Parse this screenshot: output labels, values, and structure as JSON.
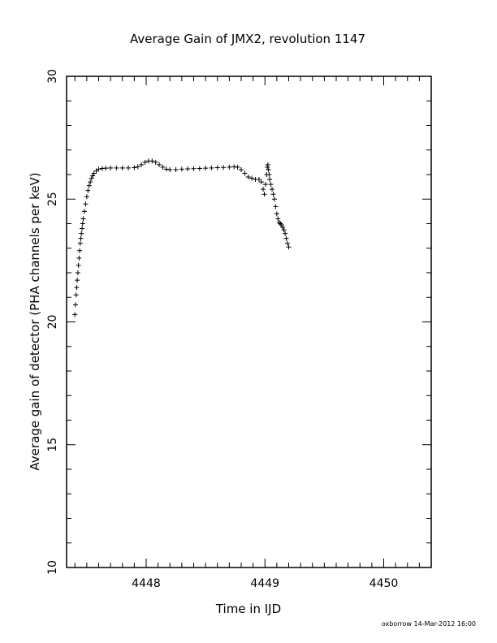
{
  "chart_data": {
    "type": "scatter",
    "title": "Average Gain of JMX2, revolution 1147",
    "xlabel": "Time in IJD",
    "ylabel": "Average gain of detector (PHA channels per keV)",
    "xlim": [
      4447.33,
      4450.4
    ],
    "ylim": [
      10,
      30
    ],
    "x_ticks": [
      4448,
      4449,
      4450
    ],
    "y_ticks": [
      10,
      15,
      20,
      25,
      30
    ],
    "x_minor_step": 0.1,
    "y_minor_step": 1,
    "grid": false,
    "legend": "none",
    "marker": "plus",
    "series": [
      {
        "points": [
          [
            4447.4,
            20.3
          ],
          [
            4447.405,
            20.7
          ],
          [
            4447.41,
            21.1
          ],
          [
            4447.415,
            21.4
          ],
          [
            4447.42,
            21.7
          ],
          [
            4447.425,
            22.0
          ],
          [
            4447.43,
            22.3
          ],
          [
            4447.435,
            22.6
          ],
          [
            4447.44,
            22.9
          ],
          [
            4447.445,
            23.2
          ],
          [
            4447.45,
            23.4
          ],
          [
            4447.455,
            23.6
          ],
          [
            4447.46,
            23.8
          ],
          [
            4447.465,
            24.0
          ],
          [
            4447.47,
            24.2
          ],
          [
            4447.48,
            24.5
          ],
          [
            4447.49,
            24.8
          ],
          [
            4447.5,
            25.1
          ],
          [
            4447.51,
            25.35
          ],
          [
            4447.52,
            25.55
          ],
          [
            4447.53,
            25.7
          ],
          [
            4447.54,
            25.85
          ],
          [
            4447.55,
            25.95
          ],
          [
            4447.56,
            26.05
          ],
          [
            4447.58,
            26.15
          ],
          [
            4447.6,
            26.22
          ],
          [
            4447.63,
            26.25
          ],
          [
            4447.66,
            26.26
          ],
          [
            4447.7,
            26.27
          ],
          [
            4447.75,
            26.27
          ],
          [
            4447.8,
            26.27
          ],
          [
            4447.85,
            26.27
          ],
          [
            4447.9,
            26.28
          ],
          [
            4447.93,
            26.32
          ],
          [
            4447.96,
            26.4
          ],
          [
            4447.99,
            26.5
          ],
          [
            4448.02,
            26.55
          ],
          [
            4448.05,
            26.55
          ],
          [
            4448.08,
            26.5
          ],
          [
            4448.11,
            26.4
          ],
          [
            4448.14,
            26.3
          ],
          [
            4448.17,
            26.22
          ],
          [
            4448.2,
            26.2
          ],
          [
            4448.25,
            26.2
          ],
          [
            4448.3,
            26.22
          ],
          [
            4448.35,
            26.23
          ],
          [
            4448.4,
            26.24
          ],
          [
            4448.45,
            26.25
          ],
          [
            4448.5,
            26.26
          ],
          [
            4448.55,
            26.27
          ],
          [
            4448.6,
            26.28
          ],
          [
            4448.65,
            26.29
          ],
          [
            4448.7,
            26.3
          ],
          [
            4448.74,
            26.32
          ],
          [
            4448.77,
            26.3
          ],
          [
            4448.8,
            26.2
          ],
          [
            4448.83,
            26.05
          ],
          [
            4448.86,
            25.9
          ],
          [
            4448.89,
            25.85
          ],
          [
            4448.92,
            25.8
          ],
          [
            4448.95,
            25.8
          ],
          [
            4448.97,
            25.7
          ],
          [
            4448.985,
            25.4
          ],
          [
            4448.995,
            25.2
          ],
          [
            4449.005,
            25.6
          ],
          [
            4449.015,
            26.0
          ],
          [
            4449.02,
            26.3
          ],
          [
            4449.025,
            26.4
          ],
          [
            4449.03,
            26.2
          ],
          [
            4449.035,
            26.0
          ],
          [
            4449.04,
            25.8
          ],
          [
            4449.05,
            25.6
          ],
          [
            4449.06,
            25.4
          ],
          [
            4449.07,
            25.2
          ],
          [
            4449.08,
            25.0
          ],
          [
            4449.09,
            24.7
          ],
          [
            4449.1,
            24.4
          ],
          [
            4449.11,
            24.2
          ],
          [
            4449.12,
            24.05
          ],
          [
            4449.13,
            24.0
          ],
          [
            4449.14,
            23.95
          ],
          [
            4449.15,
            23.85
          ],
          [
            4449.16,
            23.75
          ],
          [
            4449.17,
            23.6
          ],
          [
            4449.18,
            23.4
          ],
          [
            4449.19,
            23.2
          ],
          [
            4449.2,
            23.05
          ]
        ]
      }
    ]
  },
  "footer": {
    "credit": "oxborrow 14-Mar-2012 16:00"
  }
}
